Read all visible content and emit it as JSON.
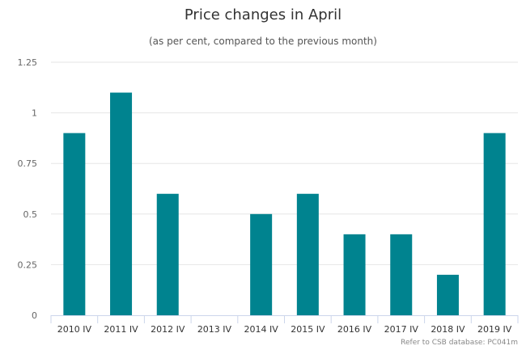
{
  "chart_data": {
    "type": "bar",
    "title": "Price changes in April",
    "subtitle": "(as per cent, compared to the previous month)",
    "categories": [
      "2010 IV",
      "2011 IV",
      "2012 IV",
      "2013 IV",
      "2014 IV",
      "2015 IV",
      "2016 IV",
      "2017 IV",
      "2018 IV",
      "2019 IV"
    ],
    "values": [
      0.9,
      1.1,
      0.6,
      0,
      0.5,
      0.6,
      0.4,
      0.4,
      0.2,
      0.9
    ],
    "ylim": [
      0,
      1.25
    ],
    "yticks": [
      "0",
      "0.25",
      "0.5",
      "0.75",
      "1",
      "1.25"
    ],
    "grid": true,
    "bar_color": "#00838f",
    "xlabel": "",
    "ylabel": ""
  },
  "credit": "Refer to CSB database: PC041m"
}
